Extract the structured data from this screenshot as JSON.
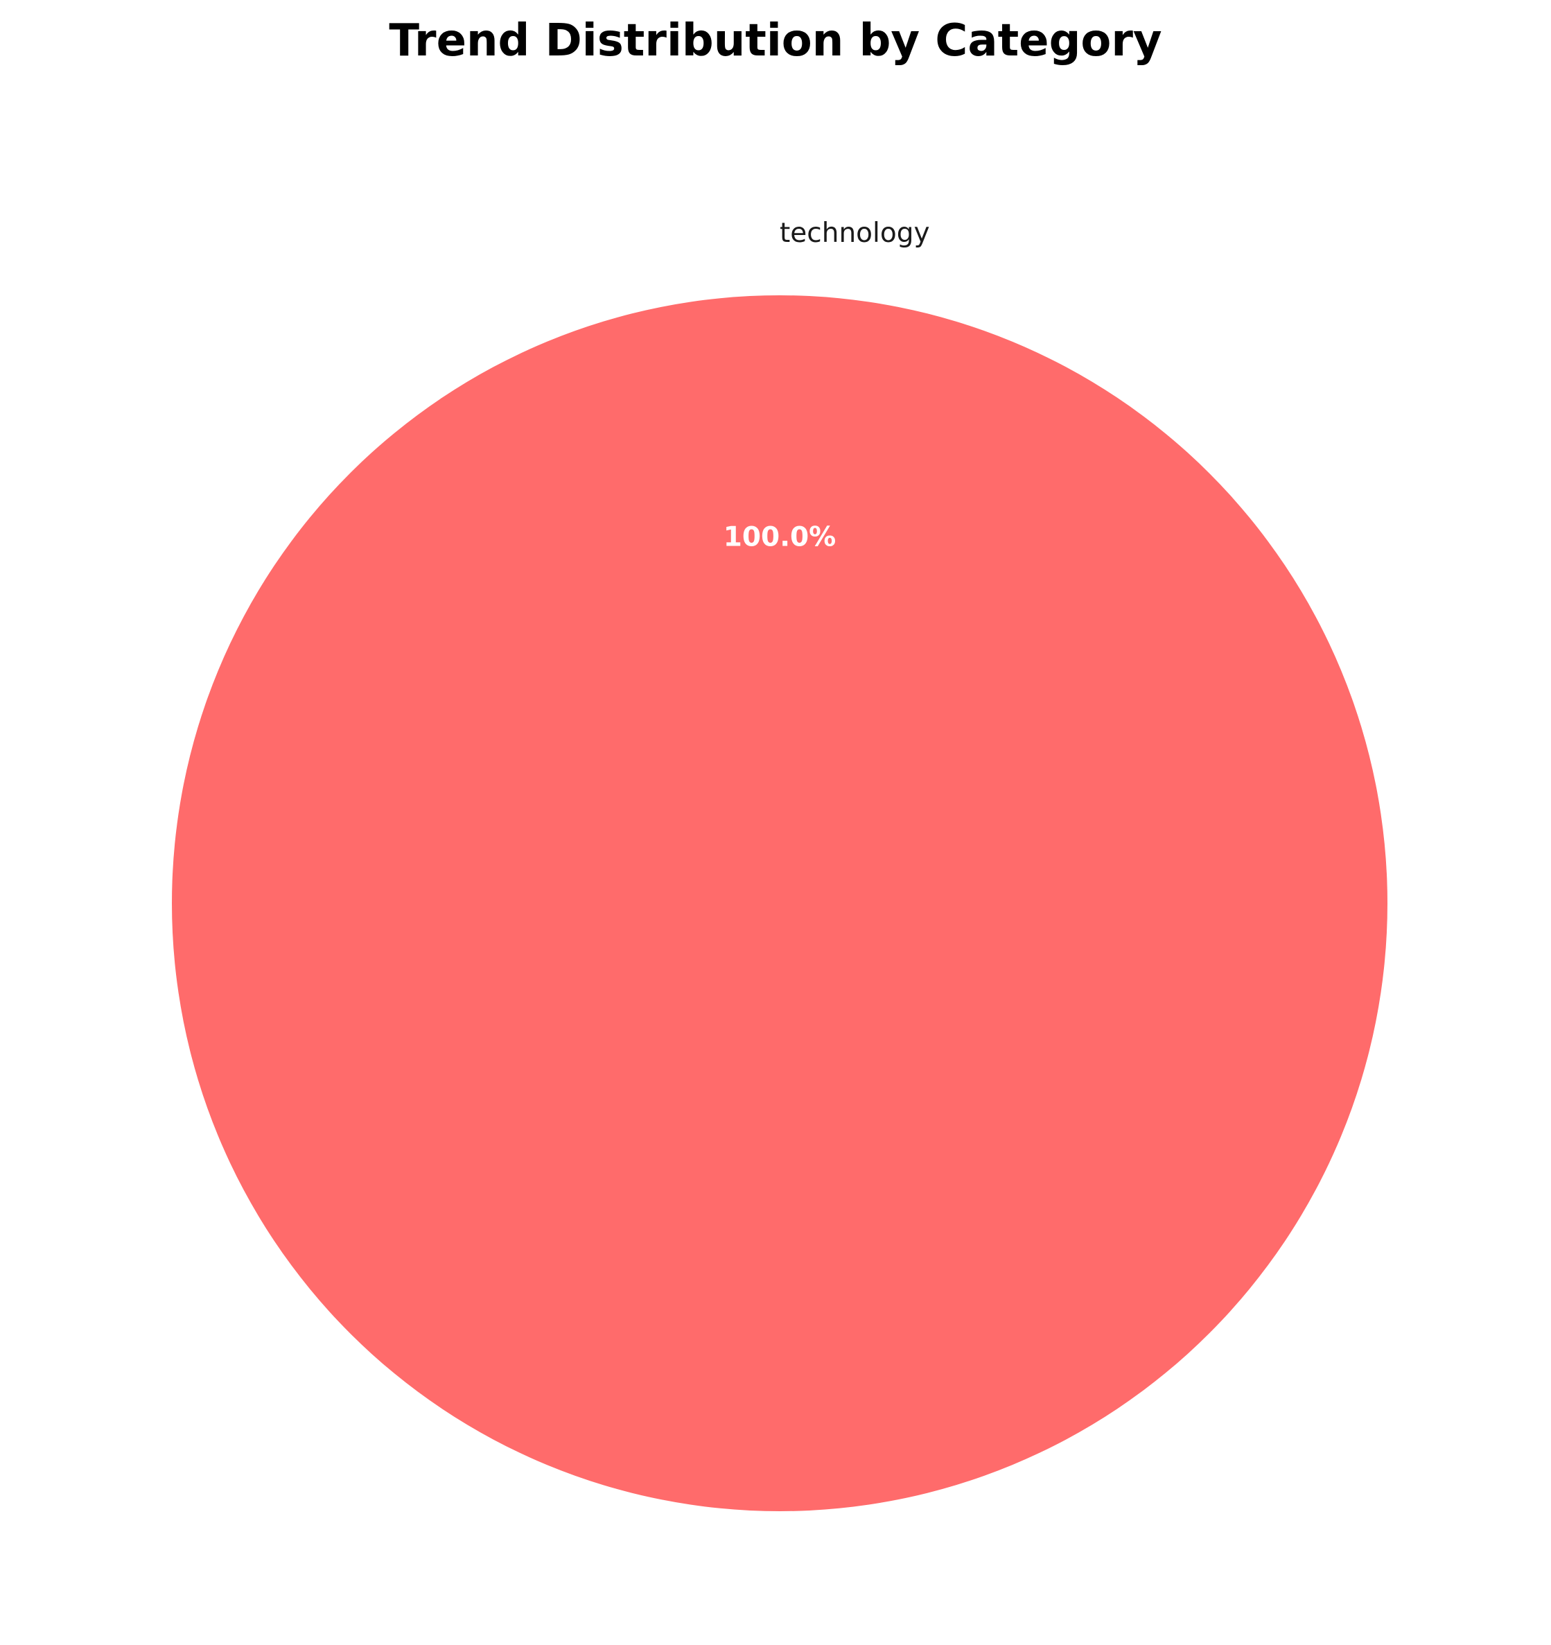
{
  "chart_data": {
    "type": "pie",
    "title": "Trend Distribution by Category",
    "categories": [
      "technology"
    ],
    "values": [
      100
    ],
    "percent_labels": [
      "100.0%"
    ],
    "colors": [
      "#ff6b6b"
    ],
    "start_angle_deg": 270,
    "counterclockwise": true
  }
}
